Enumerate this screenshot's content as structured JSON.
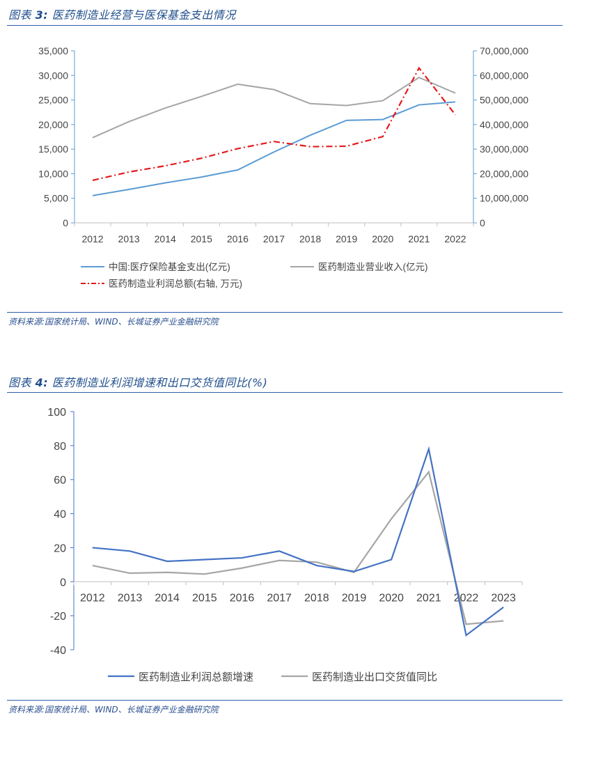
{
  "figure3": {
    "title_prefix": "图表",
    "title_num": "3:",
    "title_text": "医药制造业经营与医保基金支出情况",
    "source": "资料来源:国家统计局、WIND、长城证券产业金融研究院"
  },
  "figure4": {
    "title_prefix": "图表",
    "title_num": "4:",
    "title_text": "医药制造业利润增速和出口交货值同比(%)",
    "source": "资料来源:国家统计局、WIND、长城证券产业金融研究院"
  },
  "chart_data": [
    {
      "type": "line",
      "categories": [
        "2012",
        "2013",
        "2014",
        "2015",
        "2016",
        "2017",
        "2018",
        "2019",
        "2020",
        "2021",
        "2022"
      ],
      "left_axis": {
        "ylim": [
          0,
          35000
        ],
        "ticks": [
          "0",
          "5,000",
          "10,000",
          "15,000",
          "20,000",
          "25,000",
          "30,000",
          "35,000"
        ]
      },
      "right_axis": {
        "ylim": [
          0,
          70000000
        ],
        "ticks": [
          "0",
          "10,000,000",
          "20,000,000",
          "30,000,000",
          "40,000,000",
          "50,000,000",
          "60,000,000",
          "70,000,000"
        ]
      },
      "series": [
        {
          "name": "中国:医疗保险基金支出(亿元)",
          "axis": "left",
          "color": "#5b9bd5",
          "dash": "solid",
          "values": [
            5544,
            6801,
            8134,
            9313,
            10767,
            14422,
            17822,
            20854,
            21032,
            24011,
            24597
          ]
        },
        {
          "name": "医药制造业营业收入(亿元)",
          "axis": "left",
          "color": "#a5a5a5",
          "dash": "solid",
          "values": [
            17337,
            20592,
            23350,
            25729,
            28206,
            27117,
            24265,
            23884,
            24857,
            29583,
            26400
          ]
        },
        {
          "name": "医药制造业利润总额(右轴, 万元)",
          "axis": "right",
          "color": "#e31a1c",
          "dash": "dashdot",
          "values": [
            17300000,
            20700000,
            23200000,
            26300000,
            30200000,
            33100000,
            31000000,
            31200000,
            35100000,
            63000000,
            44000000
          ]
        }
      ],
      "legend": "bottom"
    },
    {
      "type": "line",
      "categories": [
        "2012",
        "2013",
        "2014",
        "2015",
        "2016",
        "2017",
        "2018",
        "2019",
        "2020",
        "2021",
        "2022",
        "2023"
      ],
      "ylim": [
        -40,
        100
      ],
      "ticks": [
        "100",
        "80",
        "60",
        "40",
        "20",
        "0",
        "-20",
        "-40"
      ],
      "series": [
        {
          "name": "医药制造业利润总额增速",
          "color": "#4472c4",
          "values": [
            20,
            18,
            12,
            13,
            14,
            18,
            9.5,
            6,
            13,
            78,
            -31.5,
            -15
          ]
        },
        {
          "name": "医药制造业出口交货值同比",
          "color": "#a5a5a5",
          "values": [
            9.5,
            5,
            5.5,
            4.5,
            8,
            12.5,
            11.5,
            5.5,
            37,
            64.5,
            -25,
            -23
          ]
        }
      ],
      "legend": "bottom"
    }
  ]
}
